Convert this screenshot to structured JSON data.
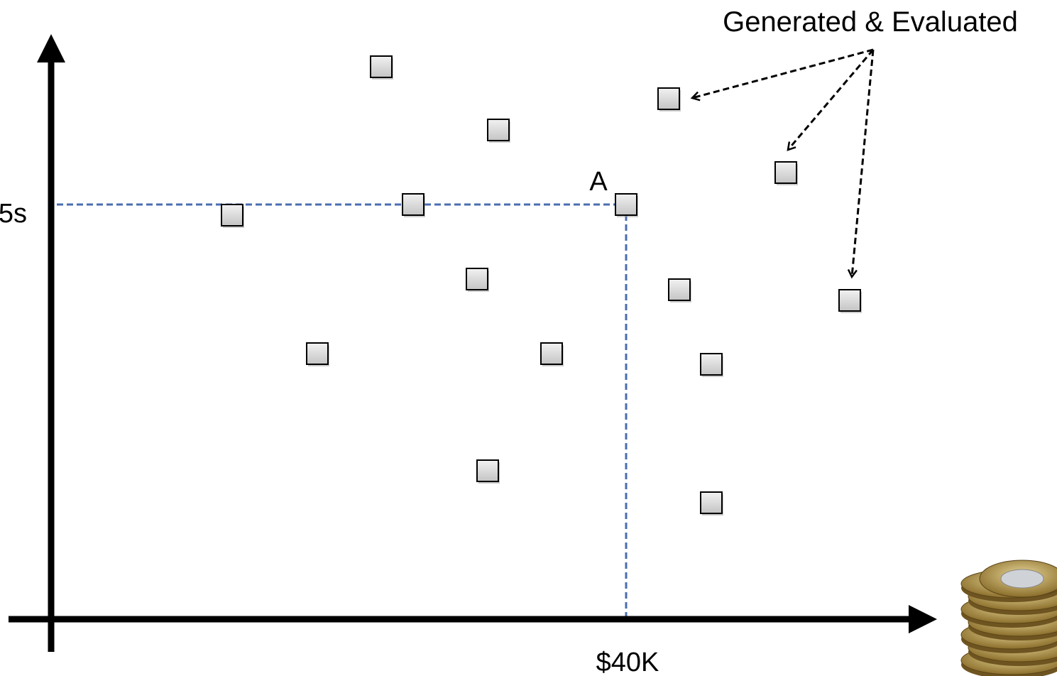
{
  "annotation": "Generated & Evaluated",
  "point_label": "A",
  "y_marker": "5s",
  "x_marker": "$40K"
}
